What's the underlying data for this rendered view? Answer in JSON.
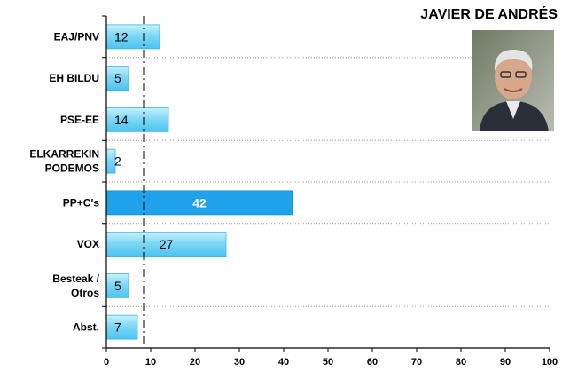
{
  "candidate": {
    "name": "JAVIER DE ANDRÉS"
  },
  "chart_data": {
    "type": "bar",
    "orientation": "horizontal",
    "categories": [
      "EAJ/PNV",
      "EH BILDU",
      "PSE-EE",
      "ELKARREKIN PODEMOS",
      "PP+C's",
      "VOX",
      "Besteak / Otros",
      "Abst."
    ],
    "values": [
      12,
      5,
      14,
      2,
      42,
      27,
      5,
      7
    ],
    "highlight_index": 4,
    "xlim": [
      0,
      100
    ],
    "xticks": [
      0,
      10,
      20,
      30,
      40,
      50,
      60,
      70,
      80,
      90,
      100
    ],
    "reference_line": 8.5,
    "grid": "horizontal dotted separators",
    "colors": {
      "bar": "#7fd8f5",
      "highlight": "#1fa2ea",
      "axis": "#000000",
      "grid": "#999999"
    }
  }
}
